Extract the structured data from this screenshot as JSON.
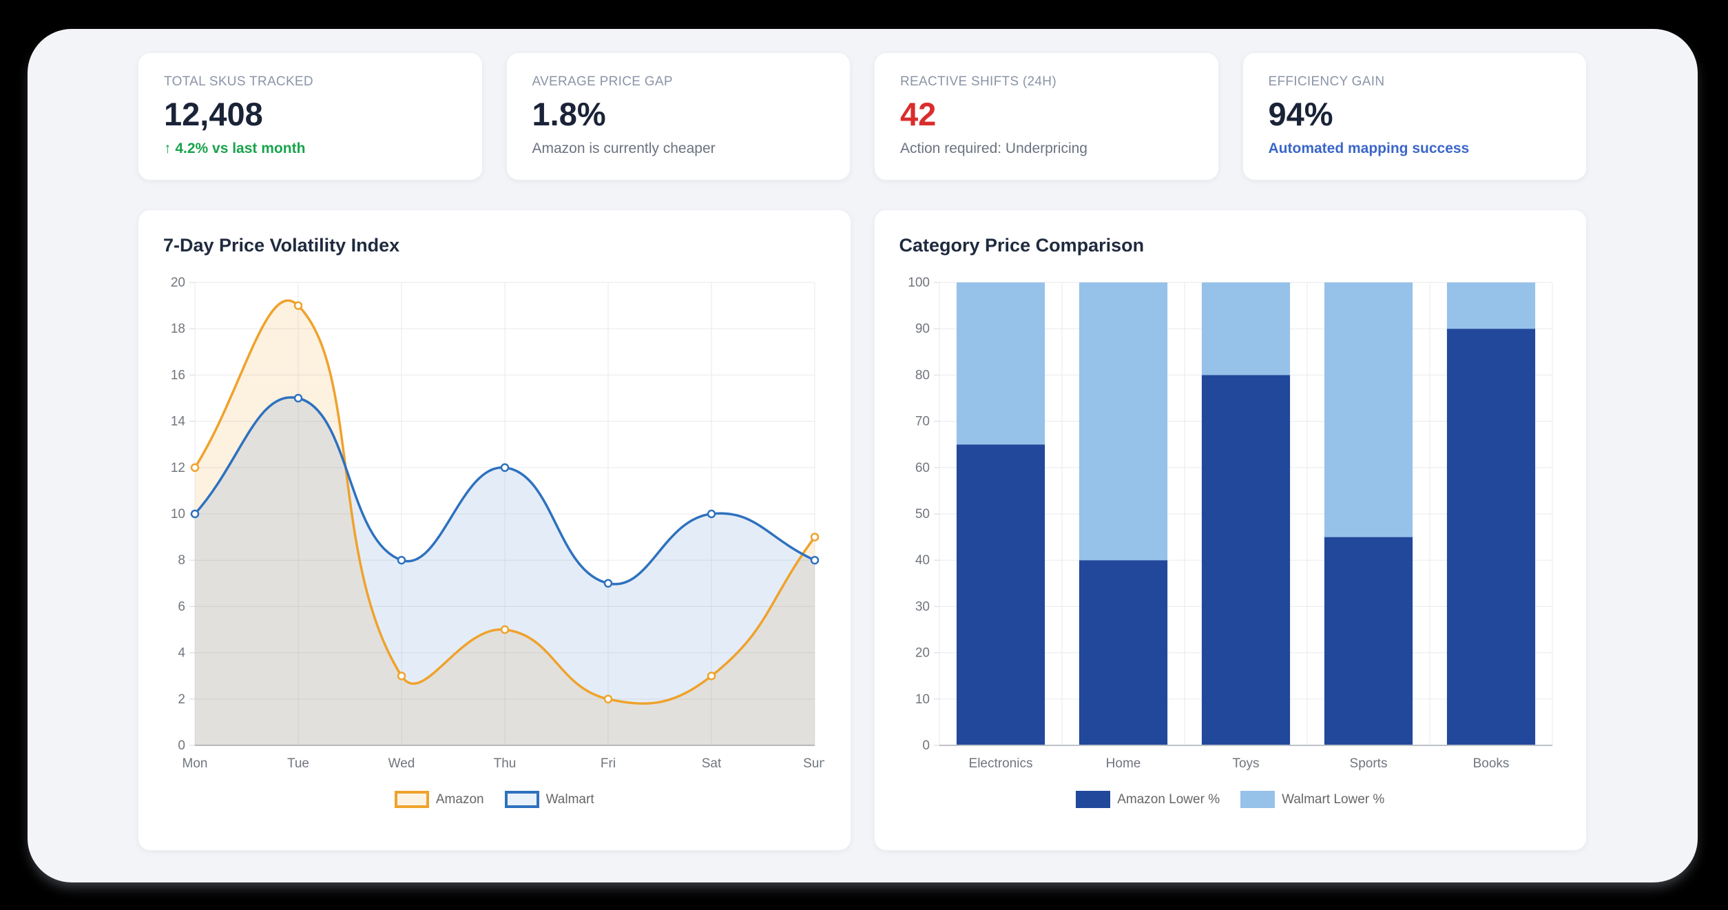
{
  "page": {
    "background": "#000000",
    "panel_background": "#F2F4F8",
    "accent_dark_navy": "#1A2337"
  },
  "kpis": [
    {
      "label": "TOTAL SKUS TRACKED",
      "value": "12,408",
      "value_color": "#1A2337",
      "note": "↑ 4.2% vs last month",
      "note_color": "#17A34A"
    },
    {
      "label": "AVERAGE PRICE GAP",
      "value": "1.8%",
      "value_color": "#1A2337",
      "note": "Amazon is currently cheaper",
      "note_color": "#6B7280"
    },
    {
      "label": "REACTIVE SHIFTS (24H)",
      "value": "42",
      "value_color": "#D92D2D",
      "note": "Action required: Underpricing",
      "note_color": "#6B7280"
    },
    {
      "label": "EFFICIENCY GAIN",
      "value": "94%",
      "value_color": "#1A2337",
      "note": "Automated mapping success",
      "note_color": "#3A66C8"
    }
  ],
  "chart_data": [
    {
      "type": "line",
      "title": "7-Day Price Volatility Index",
      "x": [
        "Mon",
        "Tue",
        "Wed",
        "Thu",
        "Fri",
        "Sat",
        "Sun"
      ],
      "xlabel": "",
      "ylabel": "",
      "ylim": [
        0,
        20
      ],
      "yticks": [
        0,
        2,
        4,
        6,
        8,
        10,
        12,
        14,
        16,
        18,
        20
      ],
      "grid": true,
      "legend_position": "bottom",
      "series": [
        {
          "name": "Amazon",
          "values": [
            12,
            19,
            3,
            5,
            2,
            3,
            9
          ],
          "color": "#EFA22C",
          "fill": "rgba(239,162,44,0.15)",
          "legend_fill": "#FCF3E4"
        },
        {
          "name": "Walmart",
          "values": [
            10,
            15,
            8,
            12,
            7,
            10,
            8
          ],
          "color": "#2E71BF",
          "fill": "rgba(46,113,191,0.13)",
          "legend_fill": "#E9F1FA"
        }
      ]
    },
    {
      "type": "bar",
      "stacked": true,
      "title": "Category Price Comparison",
      "categories": [
        "Electronics",
        "Home",
        "Toys",
        "Sports",
        "Books"
      ],
      "xlabel": "",
      "ylabel": "",
      "ylim": [
        0,
        100
      ],
      "yticks": [
        0,
        10,
        20,
        30,
        40,
        50,
        60,
        70,
        80,
        90,
        100
      ],
      "grid": true,
      "legend_position": "bottom",
      "series": [
        {
          "name": "Amazon Lower %",
          "values": [
            65,
            40,
            80,
            45,
            90
          ],
          "color": "#21489B",
          "legend_fill": "#21489B"
        },
        {
          "name": "Walmart Lower %",
          "values": [
            35,
            60,
            20,
            55,
            10
          ],
          "color": "#96C2E9",
          "legend_fill": "#96C2E9"
        }
      ]
    }
  ]
}
